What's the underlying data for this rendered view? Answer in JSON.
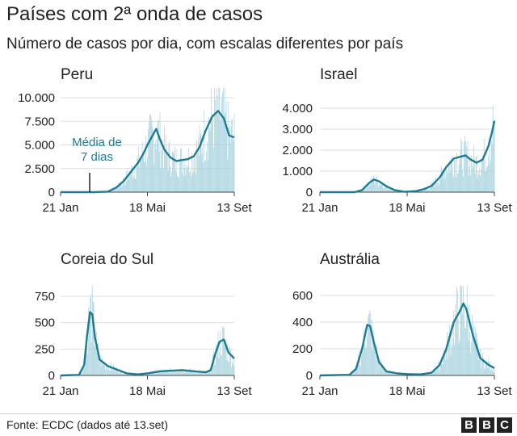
{
  "header": {
    "title": "Países com 2ª onda de casos",
    "subtitle": "Número de casos por dia, com escalas diferentes por país"
  },
  "footer": {
    "source": "Fonte: ECDC (dados até 13.set)",
    "logo": [
      "B",
      "B",
      "C"
    ]
  },
  "colors": {
    "bars": "#a9d3df",
    "line": "#1f7b93",
    "text": "#222222",
    "grid": "#dddddd"
  },
  "chart_data": [
    {
      "type": "bar+line",
      "title": "Peru",
      "x_ticks": [
        "21 Jan",
        "18 Mai",
        "13 Set"
      ],
      "x_range": [
        "2020-01-21",
        "2020-09-13"
      ],
      "ylim": [
        0,
        10000
      ],
      "y_ticks": [
        "0",
        "2.500",
        "5.000",
        "7.500",
        "10.000"
      ],
      "annotation": "Média de\n7 dias",
      "series": [
        {
          "kind": "line",
          "points": [
            [
              "2020-01-21",
              0
            ],
            [
              "2020-03-06",
              0
            ],
            [
              "2020-03-25",
              50
            ],
            [
              "2020-04-06",
              500
            ],
            [
              "2020-04-16",
              1200
            ],
            [
              "2020-04-26",
              2200
            ],
            [
              "2020-05-06",
              3200
            ],
            [
              "2020-05-12",
              4000
            ],
            [
              "2020-05-18",
              5000
            ],
            [
              "2020-05-25",
              6000
            ],
            [
              "2020-05-30",
              6700
            ],
            [
              "2020-06-04",
              5600
            ],
            [
              "2020-06-10",
              4500
            ],
            [
              "2020-06-18",
              3700
            ],
            [
              "2020-06-26",
              3300
            ],
            [
              "2020-07-04",
              3400
            ],
            [
              "2020-07-12",
              3500
            ],
            [
              "2020-07-20",
              3800
            ],
            [
              "2020-07-28",
              4800
            ],
            [
              "2020-08-05",
              6500
            ],
            [
              "2020-08-14",
              8000
            ],
            [
              "2020-08-22",
              8600
            ],
            [
              "2020-08-30",
              7800
            ],
            [
              "2020-09-06",
              6000
            ],
            [
              "2020-09-13",
              5800
            ]
          ]
        },
        {
          "kind": "bars",
          "daily_spread": 0.35,
          "note": "valores diários ao redor da média"
        }
      ]
    },
    {
      "type": "bar+line",
      "title": "Israel",
      "x_ticks": [
        "21 Jan",
        "18 Mai",
        "13 Set"
      ],
      "x_range": [
        "2020-01-21",
        "2020-09-13"
      ],
      "ylim": [
        0,
        4000
      ],
      "y_ticks": [
        "0",
        "1.000",
        "2.000",
        "3.000",
        "4.000"
      ],
      "series": [
        {
          "kind": "line",
          "points": [
            [
              "2020-01-21",
              0
            ],
            [
              "2020-03-08",
              0
            ],
            [
              "2020-03-18",
              100
            ],
            [
              "2020-03-28",
              450
            ],
            [
              "2020-04-03",
              600
            ],
            [
              "2020-04-10",
              520
            ],
            [
              "2020-04-20",
              280
            ],
            [
              "2020-05-01",
              100
            ],
            [
              "2020-05-15",
              20
            ],
            [
              "2020-05-30",
              50
            ],
            [
              "2020-06-10",
              150
            ],
            [
              "2020-06-20",
              300
            ],
            [
              "2020-07-01",
              700
            ],
            [
              "2020-07-10",
              1200
            ],
            [
              "2020-07-20",
              1600
            ],
            [
              "2020-07-30",
              1700
            ],
            [
              "2020-08-05",
              1750
            ],
            [
              "2020-08-12",
              1550
            ],
            [
              "2020-08-20",
              1400
            ],
            [
              "2020-08-28",
              1550
            ],
            [
              "2020-09-05",
              2200
            ],
            [
              "2020-09-10",
              2900
            ],
            [
              "2020-09-13",
              3400
            ]
          ]
        },
        {
          "kind": "bars",
          "daily_spread": 0.35,
          "note": "valores diários ao redor da média"
        }
      ]
    },
    {
      "type": "bar+line",
      "title": "Coreia do Sul",
      "x_ticks": [
        "21 Jan",
        "18 Mai",
        "13 Set"
      ],
      "x_range": [
        "2020-01-21",
        "2020-09-13"
      ],
      "ylim": [
        0,
        750
      ],
      "y_ticks": [
        "0",
        "250",
        "500",
        "750"
      ],
      "series": [
        {
          "kind": "line",
          "points": [
            [
              "2020-01-21",
              0
            ],
            [
              "2020-02-15",
              5
            ],
            [
              "2020-02-22",
              100
            ],
            [
              "2020-02-26",
              380
            ],
            [
              "2020-03-01",
              600
            ],
            [
              "2020-03-04",
              580
            ],
            [
              "2020-03-08",
              350
            ],
            [
              "2020-03-14",
              150
            ],
            [
              "2020-03-25",
              90
            ],
            [
              "2020-04-05",
              60
            ],
            [
              "2020-04-20",
              20
            ],
            [
              "2020-05-05",
              10
            ],
            [
              "2020-05-18",
              20
            ],
            [
              "2020-06-05",
              40
            ],
            [
              "2020-06-20",
              45
            ],
            [
              "2020-07-05",
              50
            ],
            [
              "2020-07-20",
              40
            ],
            [
              "2020-08-05",
              30
            ],
            [
              "2020-08-12",
              50
            ],
            [
              "2020-08-18",
              200
            ],
            [
              "2020-08-24",
              320
            ],
            [
              "2020-08-30",
              340
            ],
            [
              "2020-09-05",
              220
            ],
            [
              "2020-09-13",
              160
            ]
          ]
        },
        {
          "kind": "bars",
          "daily_spread": 0.35,
          "note": "valores diários ao redor da média"
        }
      ]
    },
    {
      "type": "bar+line",
      "title": "Austrália",
      "x_ticks": [
        "21 Jan",
        "18 Mai",
        "13 Set"
      ],
      "x_range": [
        "2020-01-21",
        "2020-09-13"
      ],
      "ylim": [
        0,
        600
      ],
      "y_ticks": [
        "0",
        "200",
        "400",
        "600"
      ],
      "series": [
        {
          "kind": "line",
          "points": [
            [
              "2020-01-21",
              0
            ],
            [
              "2020-03-01",
              5
            ],
            [
              "2020-03-10",
              50
            ],
            [
              "2020-03-18",
              200
            ],
            [
              "2020-03-25",
              380
            ],
            [
              "2020-03-29",
              370
            ],
            [
              "2020-04-03",
              250
            ],
            [
              "2020-04-10",
              100
            ],
            [
              "2020-04-20",
              30
            ],
            [
              "2020-05-05",
              15
            ],
            [
              "2020-05-20",
              10
            ],
            [
              "2020-06-05",
              8
            ],
            [
              "2020-06-20",
              20
            ],
            [
              "2020-07-01",
              80
            ],
            [
              "2020-07-10",
              200
            ],
            [
              "2020-07-20",
              400
            ],
            [
              "2020-07-28",
              480
            ],
            [
              "2020-08-02",
              540
            ],
            [
              "2020-08-06",
              500
            ],
            [
              "2020-08-15",
              300
            ],
            [
              "2020-08-25",
              130
            ],
            [
              "2020-09-05",
              80
            ],
            [
              "2020-09-13",
              55
            ]
          ]
        },
        {
          "kind": "bars",
          "daily_spread": 0.35,
          "note": "valores diários ao redor da média"
        }
      ]
    }
  ]
}
